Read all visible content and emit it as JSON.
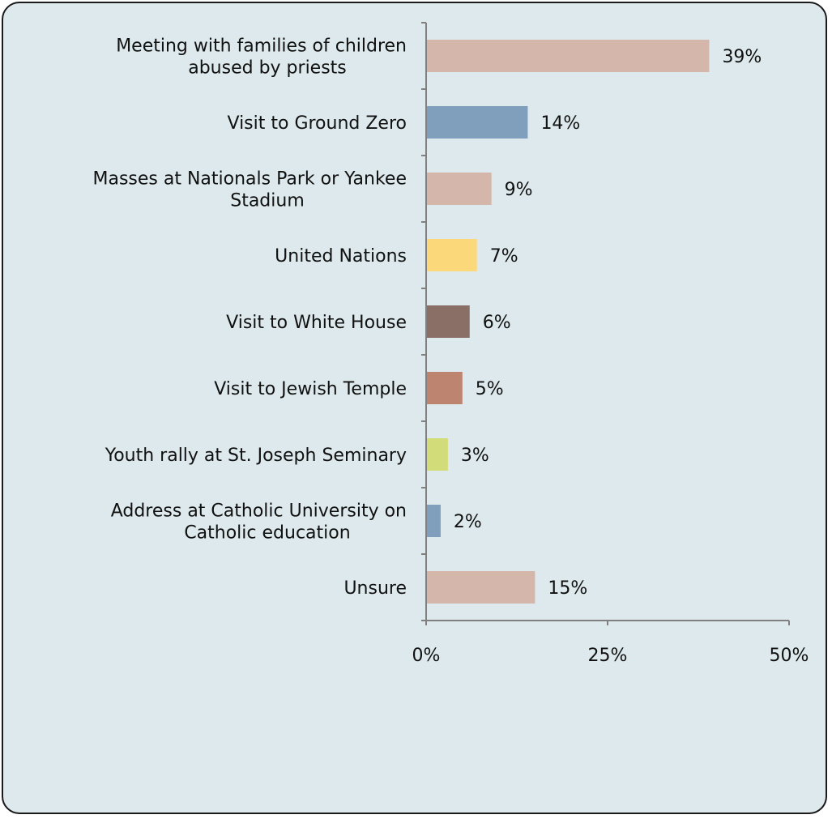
{
  "chart_data": {
    "type": "bar",
    "orientation": "horizontal",
    "title": "",
    "xlabel": "",
    "ylabel": "",
    "xlim": [
      0,
      50
    ],
    "x_ticks": [
      {
        "value": 0,
        "label": "0%"
      },
      {
        "value": 25,
        "label": "25%"
      },
      {
        "value": 50,
        "label": "50%"
      }
    ],
    "grid": false,
    "legend": "none",
    "categories": [
      {
        "lines": [
          "Meeting with families of children",
          "abused by priests"
        ],
        "value": 39,
        "label": "39%",
        "color": "#d5b6aa"
      },
      {
        "lines": [
          "Visit to Ground Zero"
        ],
        "value": 14,
        "label": "14%",
        "color": "#7f9fbd"
      },
      {
        "lines": [
          "Masses at Nationals Park or Yankee",
          "Stadium"
        ],
        "value": 9,
        "label": "9%",
        "color": "#d5b6aa"
      },
      {
        "lines": [
          "United Nations"
        ],
        "value": 7,
        "label": "7%",
        "color": "#fbd97b"
      },
      {
        "lines": [
          "Visit to White House"
        ],
        "value": 6,
        "label": "6%",
        "color": "#8a6f66"
      },
      {
        "lines": [
          "Visit to Jewish Temple"
        ],
        "value": 5,
        "label": "5%",
        "color": "#bd8470"
      },
      {
        "lines": [
          "Youth rally at St. Joseph Seminary"
        ],
        "value": 3,
        "label": "3%",
        "color": "#d2dc78"
      },
      {
        "lines": [
          "Address at Catholic University on",
          "Catholic education"
        ],
        "value": 2,
        "label": "2%",
        "color": "#7f9fbd"
      },
      {
        "lines": [
          "Unsure"
        ],
        "value": 15,
        "label": "15%",
        "color": "#d5b6aa"
      }
    ]
  }
}
